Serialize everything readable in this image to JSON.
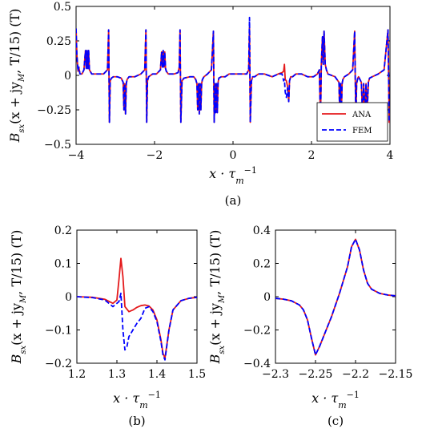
{
  "chart_data": [
    {
      "type": "line",
      "panel_label": "(a)",
      "xlabel": "x · τm−1",
      "ylabel": "Bsx(x + jyM, T/15) (T)",
      "xlim": [
        -4,
        4
      ],
      "ylim": [
        -0.5,
        0.5
      ],
      "xticks": [
        -4,
        -2,
        0,
        2,
        4
      ],
      "xtick_labels": [
        "−4",
        "−2",
        "0",
        "2",
        "4"
      ],
      "yticks": [
        -0.5,
        -0.25,
        0,
        0.25,
        0.5
      ],
      "ytick_labels": [
        "−0.5",
        "−0.25",
        "0",
        "0.25",
        "0.5"
      ],
      "legend": {
        "position": "bottom-right",
        "entries": [
          "ANA",
          "FEM"
        ]
      },
      "series": [
        {
          "name": "ANA",
          "color": "#e41a1c",
          "style": "solid",
          "x": [
            -4,
            -3.98,
            -3.95,
            -3.93,
            -3.9,
            -3.85,
            -3.8,
            -3.76,
            -3.74,
            -3.72,
            -3.7,
            -3.68,
            -3.66,
            -3.6,
            -3.3,
            -3.2,
            -3.17,
            -3.15,
            -3.13,
            -3.1,
            -3.05,
            -2.95,
            -2.85,
            -2.8,
            -2.78,
            -2.76,
            -2.74,
            -2.72,
            -2.7,
            -2.65,
            -2.5,
            -2.35,
            -2.25,
            -2.22,
            -2.2,
            -2.18,
            -2.15,
            -2.05,
            -1.95,
            -1.85,
            -1.82,
            -1.8,
            -1.78,
            -1.76,
            -1.74,
            -1.72,
            -1.7,
            -1.65,
            -1.5,
            -1.4,
            -1.37,
            -1.35,
            -1.33,
            -1.3,
            -1.25,
            -1.1,
            -1,
            -0.95,
            -0.92,
            -0.9,
            -0.88,
            -0.86,
            -0.84,
            -0.82,
            -0.8,
            -0.78,
            -0.74,
            -0.65,
            -0.55,
            -0.5,
            -0.48,
            -0.46,
            -0.44,
            -0.42,
            -0.4,
            -0.38,
            -0.36,
            -0.3,
            -0.2,
            -0.1,
            0.2,
            0.35,
            0.4,
            0.42,
            0.44,
            0.47,
            0.5,
            0.55,
            0.65,
            0.8,
            1.0,
            1.15,
            1.25,
            1.29,
            1.31,
            1.33,
            1.36,
            1.39,
            1.42,
            1.44,
            1.47,
            1.52,
            1.6,
            1.75,
            1.9,
            2.05,
            2.15,
            2.2,
            2.23,
            2.25,
            2.28,
            2.3,
            2.32,
            2.35,
            2.38,
            2.42,
            2.6,
            2.7,
            2.72,
            2.74,
            2.76,
            2.78,
            2.8,
            2.84,
            2.95,
            3.05,
            3.1,
            3.13,
            3.15,
            3.18,
            3.2,
            3.27,
            3.3,
            3.33,
            3.36,
            3.39,
            3.42,
            3.45,
            3.48,
            3.55,
            3.7,
            3.85,
            3.95,
            3.98,
            4
          ],
          "y": [
            0.34,
            0.15,
            0.03,
            0.06,
            0.01,
            0.01,
            0.04,
            0.18,
            0.05,
            0.18,
            0.05,
            0.18,
            0.04,
            0.01,
            0.01,
            0.04,
            0.33,
            -0.34,
            -0.04,
            -0.02,
            -0.01,
            -0.01,
            -0.02,
            -0.05,
            -0.25,
            -0.06,
            -0.28,
            -0.06,
            -0.03,
            -0.01,
            -0.01,
            0.01,
            0.04,
            0.33,
            -0.34,
            -0.04,
            -0.01,
            0.01,
            0.01,
            0.04,
            0.17,
            0.06,
            0.18,
            0.06,
            0.17,
            0.05,
            0.03,
            0.01,
            0.01,
            0.02,
            0.06,
            0.33,
            -0.34,
            -0.04,
            -0.02,
            -0.01,
            -0.01,
            -0.03,
            -0.06,
            -0.25,
            -0.06,
            -0.28,
            -0.06,
            -0.25,
            -0.06,
            -0.03,
            -0.01,
            0.01,
            0.04,
            0.32,
            -0.34,
            -0.06,
            -0.27,
            -0.06,
            -0.27,
            -0.05,
            -0.02,
            -0.01,
            -0.01,
            0.01,
            0.01,
            0.01,
            0.04,
            0.35,
            -0.34,
            -0.04,
            -0.01,
            -0.01,
            0.01,
            0.01,
            -0.01,
            0.01,
            0.02,
            0.03,
            0.08,
            -0.03,
            -0.04,
            -0.08,
            -0.19,
            -0.04,
            -0.01,
            -0.01,
            0.01,
            0.01,
            -0.01,
            -0.01,
            0.01,
            0.04,
            -0.34,
            0.08,
            0.28,
            0.08,
            0.32,
            0.08,
            0.04,
            0.01,
            -0.01,
            -0.05,
            -0.28,
            -0.06,
            -0.28,
            -0.06,
            -0.03,
            -0.01,
            0.01,
            0.04,
            0.32,
            -0.34,
            -0.06,
            -0.02,
            -0.01,
            -0.05,
            -0.28,
            -0.06,
            -0.28,
            -0.06,
            -0.26,
            -0.05,
            -0.02,
            -0.01,
            0.01,
            0.04,
            0.33,
            -0.34,
            -0.34
          ]
        },
        {
          "name": "FEM",
          "color": "#0000ff",
          "style": "dashed",
          "x": [
            -4,
            -3.98,
            -3.95,
            -3.93,
            -3.9,
            -3.85,
            -3.8,
            -3.76,
            -3.74,
            -3.72,
            -3.7,
            -3.68,
            -3.66,
            -3.6,
            -3.3,
            -3.2,
            -3.17,
            -3.15,
            -3.13,
            -3.1,
            -3.05,
            -2.95,
            -2.85,
            -2.8,
            -2.78,
            -2.76,
            -2.74,
            -2.72,
            -2.7,
            -2.65,
            -2.5,
            -2.35,
            -2.25,
            -2.22,
            -2.2,
            -2.18,
            -2.15,
            -2.05,
            -1.95,
            -1.85,
            -1.82,
            -1.8,
            -1.78,
            -1.76,
            -1.74,
            -1.72,
            -1.7,
            -1.65,
            -1.5,
            -1.4,
            -1.37,
            -1.35,
            -1.33,
            -1.3,
            -1.25,
            -1.1,
            -1,
            -0.95,
            -0.92,
            -0.9,
            -0.88,
            -0.86,
            -0.84,
            -0.82,
            -0.8,
            -0.78,
            -0.74,
            -0.65,
            -0.55,
            -0.5,
            -0.48,
            -0.46,
            -0.44,
            -0.42,
            -0.4,
            -0.38,
            -0.36,
            -0.3,
            -0.2,
            -0.1,
            0.2,
            0.35,
            0.4,
            0.42,
            0.44,
            0.47,
            0.5,
            0.55,
            0.65,
            0.8,
            1.0,
            1.15,
            1.25,
            1.29,
            1.31,
            1.33,
            1.36,
            1.39,
            1.42,
            1.44,
            1.47,
            1.52,
            1.6,
            1.75,
            1.9,
            2.05,
            2.15,
            2.2,
            2.23,
            2.25,
            2.28,
            2.3,
            2.32,
            2.35,
            2.38,
            2.42,
            2.6,
            2.7,
            2.72,
            2.74,
            2.76,
            2.78,
            2.8,
            2.84,
            2.95,
            3.05,
            3.1,
            3.13,
            3.15,
            3.18,
            3.2,
            3.27,
            3.3,
            3.33,
            3.36,
            3.39,
            3.42,
            3.45,
            3.48,
            3.55,
            3.7,
            3.85,
            3.95,
            3.98,
            4
          ],
          "y": [
            0.34,
            0.15,
            0.03,
            0.06,
            0.01,
            0.01,
            0.04,
            0.18,
            0.05,
            0.18,
            0.05,
            0.18,
            0.04,
            0.01,
            0.01,
            0.04,
            0.33,
            -0.34,
            -0.04,
            -0.02,
            -0.01,
            -0.01,
            -0.02,
            -0.05,
            -0.25,
            -0.06,
            -0.28,
            -0.06,
            -0.03,
            -0.01,
            -0.01,
            0.01,
            0.04,
            0.33,
            -0.34,
            -0.04,
            -0.01,
            0.01,
            0.01,
            0.04,
            0.17,
            0.06,
            0.18,
            0.06,
            0.17,
            0.05,
            0.03,
            0.01,
            0.01,
            0.02,
            0.06,
            0.33,
            -0.34,
            -0.04,
            -0.02,
            -0.01,
            -0.01,
            -0.03,
            -0.06,
            -0.25,
            -0.06,
            -0.28,
            -0.06,
            -0.25,
            -0.06,
            -0.03,
            -0.01,
            0.01,
            0.04,
            0.32,
            -0.34,
            -0.06,
            -0.27,
            -0.06,
            -0.27,
            -0.05,
            -0.02,
            -0.01,
            -0.01,
            0.01,
            0.01,
            0.01,
            0.05,
            0.42,
            -0.34,
            -0.04,
            -0.01,
            -0.01,
            0.01,
            0.01,
            -0.01,
            0.01,
            0.01,
            -0.04,
            -0.03,
            -0.12,
            -0.16,
            -0.09,
            -0.19,
            -0.04,
            -0.01,
            -0.01,
            0.01,
            0.01,
            -0.01,
            -0.01,
            0.01,
            0.04,
            -0.34,
            0.08,
            0.28,
            0.08,
            0.32,
            0.08,
            0.04,
            0.01,
            -0.01,
            -0.05,
            -0.28,
            -0.06,
            -0.28,
            -0.06,
            -0.03,
            -0.01,
            0.01,
            0.04,
            0.32,
            -0.34,
            -0.06,
            -0.02,
            -0.01,
            -0.05,
            -0.28,
            -0.06,
            -0.28,
            -0.06,
            -0.26,
            -0.05,
            -0.02,
            -0.01,
            0.01,
            0.04,
            0.33,
            -0.34,
            -0.34
          ]
        }
      ]
    },
    {
      "type": "line",
      "panel_label": "(b)",
      "xlabel": "x · τm−1",
      "ylabel": "Bsx(x + jyM, T/15) (T)",
      "xlim": [
        1.2,
        1.5
      ],
      "ylim": [
        -0.2,
        0.2
      ],
      "xticks": [
        1.2,
        1.3,
        1.4,
        1.5
      ],
      "xtick_labels": [
        "1.2",
        "1.3",
        "1.4",
        "1.5"
      ],
      "yticks": [
        -0.2,
        -0.1,
        0,
        0.1,
        0.2
      ],
      "ytick_labels": [
        "−0.2",
        "−0.1",
        "0",
        "0.1",
        "0.2"
      ],
      "series": [
        {
          "name": "ANA",
          "color": "#e41a1c",
          "style": "solid",
          "x": [
            1.2,
            1.24,
            1.27,
            1.29,
            1.3,
            1.305,
            1.31,
            1.315,
            1.32,
            1.33,
            1.34,
            1.35,
            1.36,
            1.37,
            1.38,
            1.39,
            1.4,
            1.41,
            1.415,
            1.42,
            1.43,
            1.44,
            1.46,
            1.48,
            1.5
          ],
          "y": [
            0,
            -0.002,
            -0.008,
            -0.02,
            -0.01,
            0.05,
            0.115,
            0.06,
            -0.03,
            -0.045,
            -0.04,
            -0.032,
            -0.027,
            -0.025,
            -0.028,
            -0.04,
            -0.07,
            -0.13,
            -0.17,
            -0.185,
            -0.1,
            -0.04,
            -0.012,
            -0.005,
            -0.002
          ]
        },
        {
          "name": "FEM",
          "color": "#0000ff",
          "style": "dashed",
          "x": [
            1.2,
            1.24,
            1.27,
            1.29,
            1.3,
            1.305,
            1.31,
            1.315,
            1.32,
            1.325,
            1.33,
            1.34,
            1.35,
            1.36,
            1.37,
            1.38,
            1.39,
            1.4,
            1.41,
            1.415,
            1.42,
            1.43,
            1.44,
            1.46,
            1.48,
            1.5
          ],
          "y": [
            0,
            -0.003,
            -0.01,
            -0.03,
            -0.02,
            -0.015,
            0.01,
            -0.1,
            -0.16,
            -0.15,
            -0.12,
            -0.1,
            -0.08,
            -0.065,
            -0.035,
            -0.03,
            -0.045,
            -0.075,
            -0.135,
            -0.175,
            -0.19,
            -0.1,
            -0.04,
            -0.012,
            -0.005,
            -0.002
          ]
        }
      ]
    },
    {
      "type": "line",
      "panel_label": "(c)",
      "xlabel": "x · τm−1",
      "ylabel": "Bsx(x + jyM, T/15) (T)",
      "xlim": [
        -2.3,
        -2.15
      ],
      "ylim": [
        -0.4,
        0.4
      ],
      "xticks": [
        -2.3,
        -2.25,
        -2.2,
        -2.15
      ],
      "xtick_labels": [
        "−2.3",
        "−2.25",
        "−2.2",
        "−2.15"
      ],
      "yticks": [
        -0.4,
        -0.2,
        0,
        0.2,
        0.4
      ],
      "ytick_labels": [
        "−0.4",
        "−0.2",
        "0",
        "0.2",
        "0.4"
      ],
      "series": [
        {
          "name": "ANA",
          "color": "#e41a1c",
          "style": "solid",
          "x": [
            -2.3,
            -2.29,
            -2.28,
            -2.27,
            -2.265,
            -2.26,
            -2.255,
            -2.25,
            -2.245,
            -2.24,
            -2.23,
            -2.22,
            -2.21,
            -2.205,
            -2.2,
            -2.195,
            -2.19,
            -2.185,
            -2.18,
            -2.17,
            -2.16,
            -2.15
          ],
          "y": [
            -0.01,
            -0.015,
            -0.025,
            -0.05,
            -0.08,
            -0.14,
            -0.25,
            -0.35,
            -0.3,
            -0.24,
            -0.12,
            0.02,
            0.18,
            0.3,
            0.345,
            0.28,
            0.16,
            0.08,
            0.045,
            0.02,
            0.01,
            0.005
          ]
        },
        {
          "name": "FEM",
          "color": "#0000ff",
          "style": "dashed",
          "x": [
            -2.3,
            -2.29,
            -2.28,
            -2.27,
            -2.265,
            -2.26,
            -2.255,
            -2.25,
            -2.245,
            -2.24,
            -2.23,
            -2.22,
            -2.21,
            -2.205,
            -2.2,
            -2.195,
            -2.19,
            -2.185,
            -2.18,
            -2.17,
            -2.16,
            -2.15
          ],
          "y": [
            -0.01,
            -0.015,
            -0.025,
            -0.05,
            -0.08,
            -0.14,
            -0.25,
            -0.35,
            -0.3,
            -0.24,
            -0.12,
            0.02,
            0.18,
            0.3,
            0.345,
            0.28,
            0.16,
            0.08,
            0.045,
            0.02,
            0.01,
            0.005
          ]
        }
      ]
    }
  ]
}
